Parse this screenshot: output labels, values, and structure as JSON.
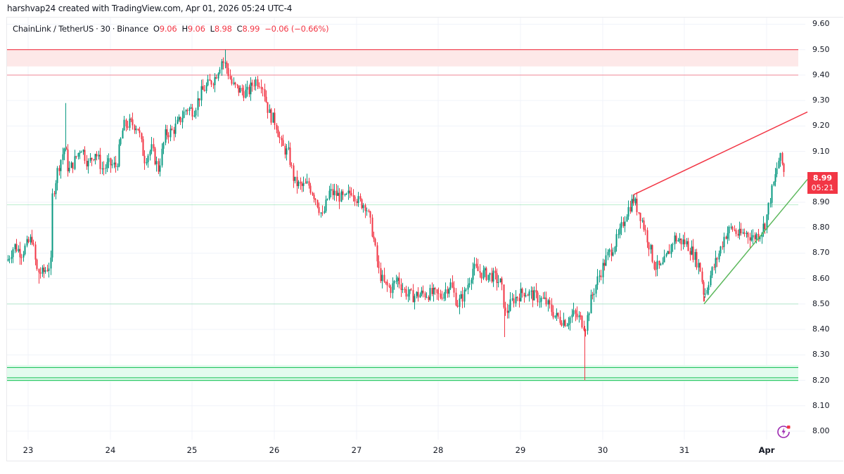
{
  "credit": "harshvap24 created with TradingView.com, Apr 01, 2026 05:24 UTC-4",
  "legend": {
    "symbol": "ChainLink / TetherUS",
    "interval": "30",
    "exchange": "Binance",
    "open_label": "O",
    "open": "9.06",
    "high_label": "H",
    "high": "9.06",
    "low_label": "L",
    "low": "8.98",
    "close_label": "C",
    "close": "8.99",
    "change": "−0.06 (−0.66%)"
  },
  "price_tag": {
    "price": "8.99",
    "countdown": "05:21"
  },
  "colors": {
    "up": "#089981",
    "down": "#f23645",
    "grid": "#f0f3fa",
    "resistance": "#f23645",
    "resistance_fill": "#fde8e8",
    "support": "#22c55e",
    "support_fill": "#e3fbee",
    "trend_up": "#5cb85c"
  },
  "chart_data": {
    "type": "candlestick",
    "title": "ChainLink / TetherUS · 30 · Binance",
    "xlabel": "",
    "ylabel": "",
    "ylim": [
      8.0,
      9.6
    ],
    "y_ticks": [
      "9.60",
      "9.50",
      "9.40",
      "9.30",
      "9.20",
      "9.10",
      "9.00",
      "8.90",
      "8.80",
      "8.70",
      "8.60",
      "8.50",
      "8.40",
      "8.30",
      "8.20",
      "8.10",
      "8.00"
    ],
    "x_ticks": [
      "23",
      "24",
      "25",
      "26",
      "27",
      "28",
      "29",
      "30",
      "31",
      "Apr"
    ],
    "grid": true,
    "path_waypoints": [
      [
        10,
        8.67
      ],
      [
        20,
        8.73
      ],
      [
        30,
        8.7
      ],
      [
        45,
        8.76
      ],
      [
        52,
        8.63
      ],
      [
        60,
        8.62
      ],
      [
        72,
        8.66
      ],
      [
        74,
        8.92
      ],
      [
        82,
        9.03
      ],
      [
        92,
        9.12
      ],
      [
        97,
        9.02
      ],
      [
        105,
        9.06
      ],
      [
        115,
        9.12
      ],
      [
        125,
        9.05
      ],
      [
        135,
        9.1
      ],
      [
        145,
        9.03
      ],
      [
        155,
        9.05
      ],
      [
        165,
        9.04
      ],
      [
        175,
        9.2
      ],
      [
        185,
        9.21
      ],
      [
        195,
        9.2
      ],
      [
        205,
        9.07
      ],
      [
        215,
        9.11
      ],
      [
        225,
        9.03
      ],
      [
        235,
        9.17
      ],
      [
        245,
        9.18
      ],
      [
        255,
        9.22
      ],
      [
        265,
        9.27
      ],
      [
        275,
        9.26
      ],
      [
        285,
        9.33
      ],
      [
        295,
        9.36
      ],
      [
        305,
        9.39
      ],
      [
        315,
        9.46
      ],
      [
        322,
        9.43
      ],
      [
        330,
        9.36
      ],
      [
        340,
        9.34
      ],
      [
        352,
        9.33
      ],
      [
        362,
        9.38
      ],
      [
        372,
        9.37
      ],
      [
        382,
        9.25
      ],
      [
        392,
        9.21
      ],
      [
        400,
        9.12
      ],
      [
        410,
        9.09
      ],
      [
        418,
        8.98
      ],
      [
        428,
        8.96
      ],
      [
        438,
        8.97
      ],
      [
        448,
        8.92
      ],
      [
        458,
        8.84
      ],
      [
        468,
        8.94
      ],
      [
        478,
        8.93
      ],
      [
        490,
        8.91
      ],
      [
        500,
        8.95
      ],
      [
        510,
        8.9
      ],
      [
        520,
        8.89
      ],
      [
        530,
        8.77
      ],
      [
        538,
        8.63
      ],
      [
        545,
        8.58
      ],
      [
        555,
        8.56
      ],
      [
        565,
        8.6
      ],
      [
        575,
        8.55
      ],
      [
        585,
        8.53
      ],
      [
        600,
        8.54
      ],
      [
        615,
        8.54
      ],
      [
        625,
        8.53
      ],
      [
        640,
        8.58
      ],
      [
        650,
        8.5
      ],
      [
        660,
        8.54
      ],
      [
        672,
        8.64
      ],
      [
        685,
        8.62
      ],
      [
        700,
        8.61
      ],
      [
        712,
        8.58
      ],
      [
        718,
        8.46
      ],
      [
        730,
        8.52
      ],
      [
        745,
        8.55
      ],
      [
        760,
        8.53
      ],
      [
        775,
        8.51
      ],
      [
        790,
        8.45
      ],
      [
        805,
        8.43
      ],
      [
        815,
        8.46
      ],
      [
        825,
        8.44
      ],
      [
        832,
        8.41
      ],
      [
        840,
        8.52
      ],
      [
        850,
        8.6
      ],
      [
        860,
        8.67
      ],
      [
        870,
        8.72
      ],
      [
        880,
        8.77
      ],
      [
        890,
        8.86
      ],
      [
        900,
        8.91
      ],
      [
        910,
        8.85
      ],
      [
        920,
        8.76
      ],
      [
        930,
        8.65
      ],
      [
        940,
        8.64
      ],
      [
        950,
        8.7
      ],
      [
        958,
        8.76
      ],
      [
        965,
        8.75
      ],
      [
        975,
        8.74
      ],
      [
        985,
        8.7
      ],
      [
        995,
        8.64
      ],
      [
        1001,
        8.53
      ],
      [
        1008,
        8.6
      ],
      [
        1015,
        8.65
      ],
      [
        1022,
        8.7
      ],
      [
        1030,
        8.77
      ],
      [
        1040,
        8.8
      ],
      [
        1050,
        8.77
      ],
      [
        1060,
        8.78
      ],
      [
        1070,
        8.76
      ],
      [
        1080,
        8.78
      ],
      [
        1088,
        8.82
      ],
      [
        1095,
        8.92
      ],
      [
        1102,
        9.0
      ],
      [
        1108,
        9.08
      ],
      [
        1113,
        9.04
      ],
      [
        1116,
        8.99
      ]
    ],
    "spikes": [
      [
        320,
        9.5
      ],
      [
        831,
        8.2
      ],
      [
        717,
        8.37
      ],
      [
        1001,
        8.51
      ],
      [
        901,
        8.93
      ],
      [
        93,
        9.29
      ],
      [
        55,
        8.58
      ]
    ],
    "horizontal_levels": [
      {
        "price": 9.5,
        "type": "resistance_top"
      },
      {
        "price": 9.4,
        "type": "resistance_bottom"
      },
      {
        "price": 8.89,
        "type": "faint_support"
      },
      {
        "price": 8.5,
        "type": "faint_support"
      },
      {
        "price": 8.25,
        "type": "support"
      },
      {
        "price": 8.21,
        "type": "support"
      },
      {
        "price": 8.2,
        "type": "support"
      }
    ],
    "zones": [
      {
        "from": 9.434,
        "to": 9.5,
        "type": "resistance"
      },
      {
        "from": 8.195,
        "to": 8.26,
        "type": "support"
      }
    ],
    "trendlines": [
      {
        "name": "upper-resistance-trendline",
        "from": [
          901,
          8.93
        ],
        "to": [
          1148,
          9.255
        ]
      },
      {
        "name": "lower-support-trendline",
        "from": [
          1001,
          8.5
        ],
        "to": [
          1148,
          8.99
        ]
      }
    ],
    "last": {
      "open": 9.06,
      "high": 9.06,
      "low": 8.98,
      "close": 8.99,
      "change": -0.06,
      "change_pct": -0.66
    }
  }
}
